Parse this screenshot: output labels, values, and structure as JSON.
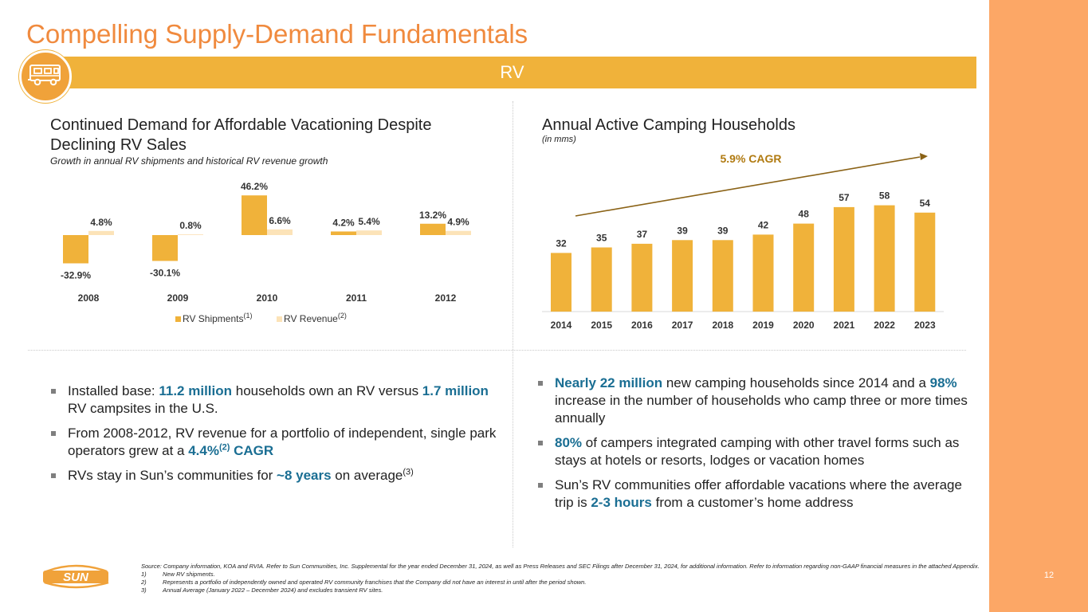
{
  "title": "Compelling Supply-Demand Fundamentals",
  "banner": {
    "label": "RV",
    "icon": "rv-icon"
  },
  "colors": {
    "title": "#f08a3e",
    "banner": "#f0b23a",
    "shipments": "#f0b23a",
    "revenue": "#fce3b8",
    "highlight": "#1a6e93",
    "right_band": "#fca766",
    "cagr_text": "#b07a10",
    "cagr_arrow": "#8a6216"
  },
  "left": {
    "heading_line1": "Continued Demand for Affordable Vacationing Despite",
    "heading_line2": "Declining RV Sales",
    "subheading": "Growth in annual RV shipments and historical RV revenue growth"
  },
  "right": {
    "heading": "Annual Active Camping Households",
    "subheading": "(in mms)",
    "cagr_label": "5.9% CAGR"
  },
  "chart_data": [
    {
      "type": "bar",
      "title": "Continued Demand for Affordable Vacationing Despite Declining RV Sales",
      "subtitle": "Growth in annual RV shipments and historical RV revenue growth",
      "categories": [
        "2008",
        "2009",
        "2010",
        "2011",
        "2012"
      ],
      "series": [
        {
          "name": "RV Shipments",
          "sup": "(1)",
          "values": [
            -32.9,
            -30.1,
            46.2,
            4.2,
            13.2
          ],
          "labels": [
            "-32.9%",
            "-30.1%",
            "46.2%",
            "4.2%",
            "13.2%"
          ]
        },
        {
          "name": "RV Revenue",
          "sup": "(2)",
          "values": [
            4.8,
            0.8,
            6.6,
            5.4,
            4.9
          ],
          "labels": [
            "4.8%",
            "0.8%",
            "6.6%",
            "5.4%",
            "4.9%"
          ]
        }
      ],
      "legend": "bottom",
      "ylim": [
        -35,
        50
      ],
      "grid": false
    },
    {
      "type": "bar",
      "title": "Annual Active Camping Households",
      "subtitle": "(in mms)",
      "categories": [
        "2014",
        "2015",
        "2016",
        "2017",
        "2018",
        "2019",
        "2020",
        "2021",
        "2022",
        "2023"
      ],
      "values": [
        32,
        35,
        37,
        39,
        39,
        42,
        48,
        57,
        58,
        54
      ],
      "labels": [
        "32",
        "35",
        "37",
        "39",
        "39",
        "42",
        "48",
        "57",
        "58",
        "54"
      ],
      "annotation": "5.9% CAGR",
      "ylim": [
        0,
        70
      ],
      "grid": false
    }
  ],
  "bullets_left": [
    {
      "parts": [
        {
          "t": "Installed base: "
        },
        {
          "t": "11.2 million",
          "hl": true
        },
        {
          "t": " households own an RV versus "
        },
        {
          "t": "1.7 million",
          "hl": true
        },
        {
          "t": " RV campsites in the U.S."
        }
      ]
    },
    {
      "parts": [
        {
          "t": "From 2008-2012, RV revenue for a portfolio of independent, single park operators grew at a "
        },
        {
          "t": "4.4%",
          "hl": true
        },
        {
          "t": "(2)",
          "sup": true,
          "hl": true
        },
        {
          "t": " CAGR",
          "hl": true
        }
      ]
    },
    {
      "parts": [
        {
          "t": "RVs stay in Sun’s communities for "
        },
        {
          "t": "~8 years",
          "hl": true
        },
        {
          "t": " on average"
        },
        {
          "t": "(3)",
          "sup": true
        }
      ]
    }
  ],
  "bullets_right": [
    {
      "parts": [
        {
          "t": "Nearly 22 million",
          "hl": true
        },
        {
          "t": " new camping households since 2014 and a "
        },
        {
          "t": "98%",
          "hl": true
        },
        {
          "t": " increase in the number of households who camp three or more times annually"
        }
      ]
    },
    {
      "parts": [
        {
          "t": "80%",
          "hl": true
        },
        {
          "t": " of campers integrated camping with other travel forms such as stays at hotels or resorts, lodges or vacation homes"
        }
      ]
    },
    {
      "parts": [
        {
          "t": "Sun’s RV communities offer affordable vacations where the average trip is "
        },
        {
          "t": "2-3 hours",
          "hl": true
        },
        {
          "t": " from a customer’s home address"
        }
      ]
    }
  ],
  "footnotes": {
    "source": "Source: Company information, KOA and RVIA. Refer to Sun Communities, Inc. Supplemental for the year ended December 31, 2024, as well as Press Releases and SEC Filings after December 31, 2024, for additional information. Refer to information regarding non-GAAP financial measures in the attached Appendix.",
    "notes": [
      {
        "num": "1)",
        "text": "New RV shipments."
      },
      {
        "num": "2)",
        "text": "Represents a portfolio of independently owned and operated RV community franchises that the Company did not have an interest in until after the period shown."
      },
      {
        "num": "3)",
        "text": "Annual Average (January 2022 – December 2024) and excludes transient RV sites."
      }
    ]
  },
  "logo": {
    "text": "SUN"
  },
  "page_number": "12"
}
